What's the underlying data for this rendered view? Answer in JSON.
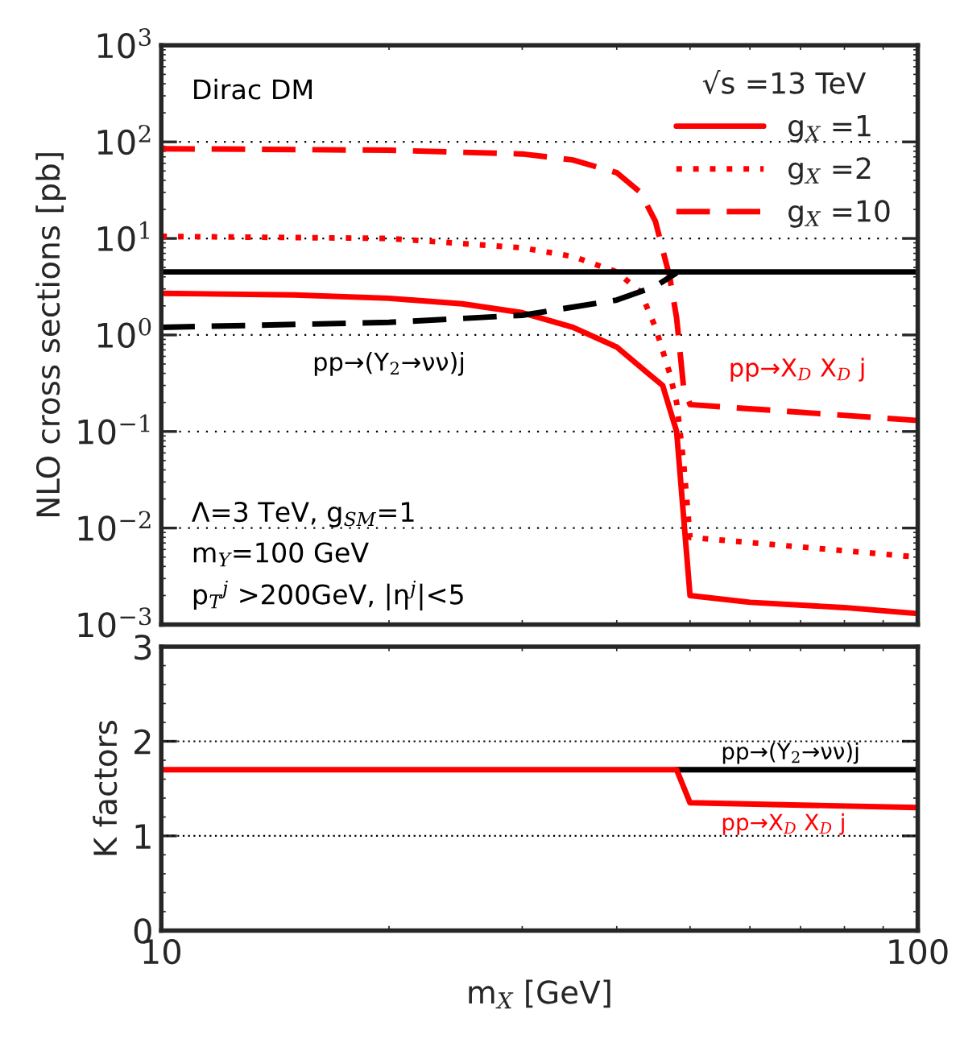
{
  "chart_data": [
    {
      "type": "line",
      "ylabel": "NLO cross sections [pb]",
      "legend_title": "√s =13 TeV",
      "legend": "top right",
      "grid": "y",
      "log": "xy",
      "tick_labels": "y",
      "xlim": [
        10,
        100
      ],
      "xticks": [
        {
          "value": 10,
          "label": null
        },
        {
          "value": 100,
          "label": null
        }
      ],
      "ylim": [
        0.001,
        1000
      ],
      "yticks": [
        {
          "value": 0.001,
          "label": "10$^{−3}$"
        },
        {
          "value": 0.01,
          "label": "10$^{−2}$"
        },
        {
          "value": 0.1,
          "label": "10$^{−1}$"
        },
        {
          "value": 1,
          "label": "10$^{0}$"
        },
        {
          "value": 10,
          "label": "10$^{1}$"
        },
        {
          "value": 100,
          "label": "10$^{2}$"
        },
        {
          "value": 1000,
          "label": "10$^{3}$"
        }
      ],
      "series": [
        {
          "name": "g$_{X}$ =1",
          "color": "#ff0000",
          "line_style": "solid",
          "x": [
            10,
            15,
            20,
            25,
            30,
            35,
            40,
            44,
            46,
            48,
            50,
            60,
            80,
            100
          ],
          "values": [
            2.7,
            2.6,
            2.4,
            2.1,
            1.7,
            1.2,
            0.75,
            0.4,
            0.3,
            0.1,
            0.002,
            0.0017,
            0.0015,
            0.0013
          ]
        },
        {
          "name": "g$_{X}$ =2",
          "color": "#ff0000",
          "line_style": "dotted",
          "x": [
            10,
            20,
            30,
            35,
            40,
            43,
            45,
            47,
            48,
            49,
            50,
            100
          ],
          "values": [
            10.5,
            10,
            8,
            6.5,
            4.5,
            2.8,
            1.2,
            0.4,
            0.2,
            0.05,
            0.008,
            0.005
          ]
        },
        {
          "name": "g$_{X}$ =10",
          "color": "#ff0000",
          "line_style": "dashed",
          "x": [
            10,
            20,
            30,
            35,
            40,
            43,
            45,
            47,
            48,
            49,
            50,
            100
          ],
          "values": [
            85,
            82,
            75,
            65,
            48,
            30,
            15,
            4,
            1.5,
            0.3,
            0.19,
            0.13
          ]
        },
        {
          "color": "#000000",
          "line_style": "solid",
          "x": [
            10,
            100
          ],
          "values": [
            4.5,
            4.5
          ]
        },
        {
          "color": "#000000",
          "line_style": "dashed",
          "x": [
            10,
            20,
            30,
            40,
            45,
            48
          ],
          "values": [
            1.2,
            1.35,
            1.6,
            2.3,
            3.2,
            4.4
          ]
        }
      ],
      "annotations": [
        "Dirac DM",
        "Λ=3 TeV, g$_{SM}$=1",
        "m$_{Y}$=100 GeV",
        "p$_{T}$$^{j}$ >200GeV, |η$^{j}$|<5",
        "pp→(Y$_{2}$→νν)j",
        "pp→X$_{D}$ X$_{D}$ j"
      ]
    },
    {
      "type": "line",
      "xlabel": "m$_{X}$ [GeV]",
      "ylabel": "K factors",
      "log": "x",
      "ref_lines": [
        {
          "axis": "y",
          "value": 1,
          "color": "#000000",
          "line_style": "dotted"
        },
        {
          "axis": "y",
          "value": 2,
          "color": "#000000",
          "line_style": "dotted"
        }
      ],
      "xlim": [
        10,
        100
      ],
      "xticks": [
        10,
        100
      ],
      "ylim": [
        0,
        3
      ],
      "yticks": [
        0,
        1,
        2,
        3
      ],
      "series": [
        {
          "color": "#000000",
          "line_style": "solid",
          "x": [
            48,
            100
          ],
          "values": [
            1.7,
            1.7
          ]
        },
        {
          "color": "#ff0000",
          "line_style": "solid",
          "x": [
            10,
            48,
            50,
            100
          ],
          "values": [
            1.7,
            1.7,
            1.35,
            1.3
          ]
        }
      ],
      "annotations": [
        "pp→(Y$_{2}$→νν)j",
        "pp→X$_{D}$ X$_{D}$ j"
      ]
    }
  ]
}
